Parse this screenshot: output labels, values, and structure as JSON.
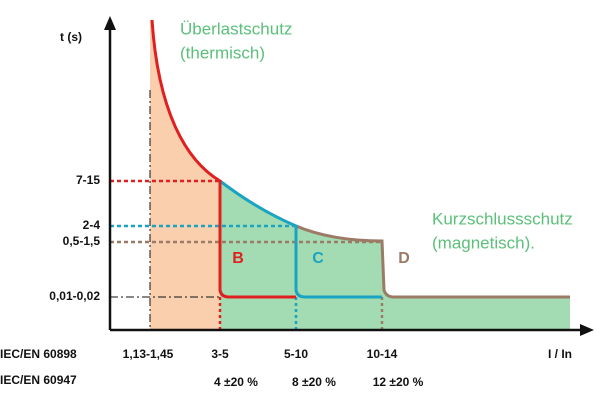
{
  "axis": {
    "y_label": "t (s)",
    "x_label": "I / In"
  },
  "y_labels": [
    "7-15",
    "2-4",
    "0,5-1,5",
    "0,01-0,02"
  ],
  "x_labels": [
    "1,13-1,45",
    "3-5",
    "5-10",
    "10-14"
  ],
  "standards": [
    "IEC/EN 60898",
    "IEC/EN 60947"
  ],
  "multipliers": [
    "4 ±20 %",
    "8 ±20 %",
    "12 ±20 %"
  ],
  "overload": {
    "title": "Überlastschutz",
    "subtitle": "(thermisch)"
  },
  "short_circuit": {
    "title": "Kurzschlussschutz",
    "subtitle": "(magnetisch)."
  },
  "curves": [
    "B",
    "C",
    "D"
  ]
}
